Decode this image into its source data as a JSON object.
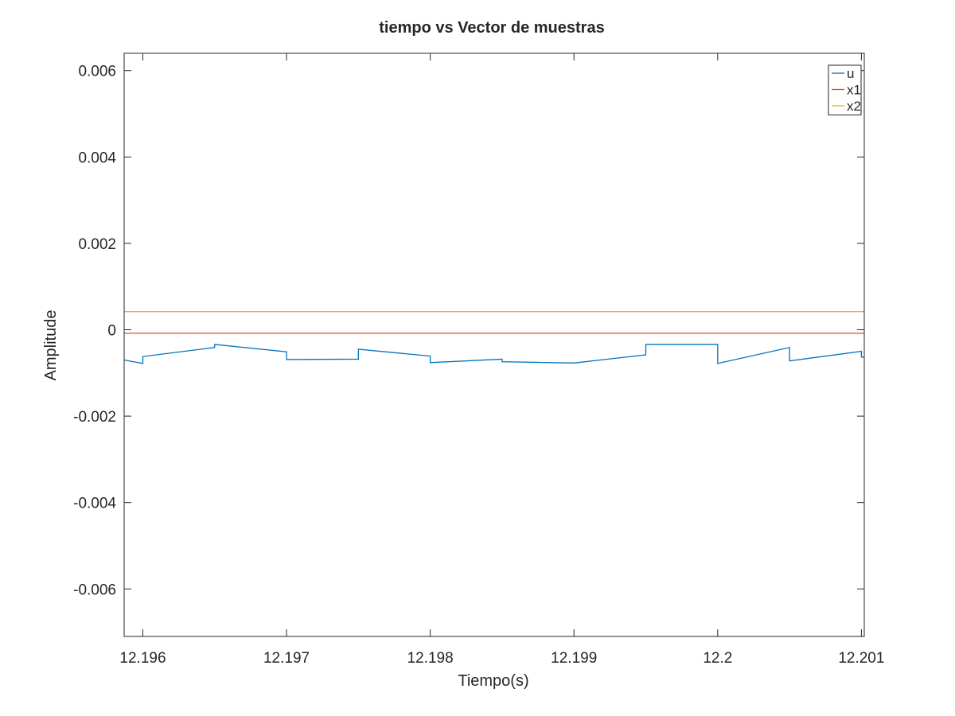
{
  "chart_data": {
    "type": "line",
    "title": "tiempo vs Vector de muestras",
    "xlabel": "Tiempo(s)",
    "ylabel": "Amplitude",
    "xlim": [
      12.19587,
      12.20102
    ],
    "ylim": [
      -0.0071,
      0.0064
    ],
    "xticks": [
      12.196,
      12.197,
      12.198,
      12.199,
      12.2,
      12.201
    ],
    "xtick_labels": [
      "12.196",
      "12.197",
      "12.198",
      "12.199",
      "12.2",
      "12.201"
    ],
    "yticks": [
      0.006,
      0.004,
      0.002,
      0,
      -0.002,
      -0.004,
      -0.006
    ],
    "ytick_labels": [
      "0.006",
      "0.004",
      "0.002",
      "0",
      "-0.002",
      "-0.004",
      "-0.006"
    ],
    "grid": false,
    "legend_position": "top-right",
    "series": [
      {
        "name": "u",
        "color": "#0072bd",
        "x": [
          12.19587,
          12.196,
          12.196,
          12.1965,
          12.1965,
          12.197,
          12.197,
          12.1975,
          12.1975,
          12.198,
          12.198,
          12.1985,
          12.1985,
          12.199,
          12.199,
          12.1995,
          12.1995,
          12.2,
          12.2,
          12.2005,
          12.2005,
          12.201,
          12.201,
          12.20102
        ],
        "y": [
          -0.0007,
          -0.00078,
          -0.00062,
          -0.00041,
          -0.00034,
          -0.00051,
          -0.00069,
          -0.00068,
          -0.00045,
          -0.00061,
          -0.00076,
          -0.00068,
          -0.00074,
          -0.00077,
          -0.00077,
          -0.00058,
          -0.00034,
          -0.00034,
          -0.00078,
          -0.00041,
          -0.00072,
          -0.0005,
          -0.00063,
          -0.00064
        ]
      },
      {
        "name": "x1",
        "color": "#d95319",
        "x": [
          12.19587,
          12.20102
        ],
        "y": [
          -8e-05,
          -8e-05
        ]
      },
      {
        "name": "x2",
        "color": "#edb120",
        "x": [
          12.19587,
          12.20102
        ],
        "y": [
          0.00042,
          0.00042
        ]
      }
    ]
  }
}
